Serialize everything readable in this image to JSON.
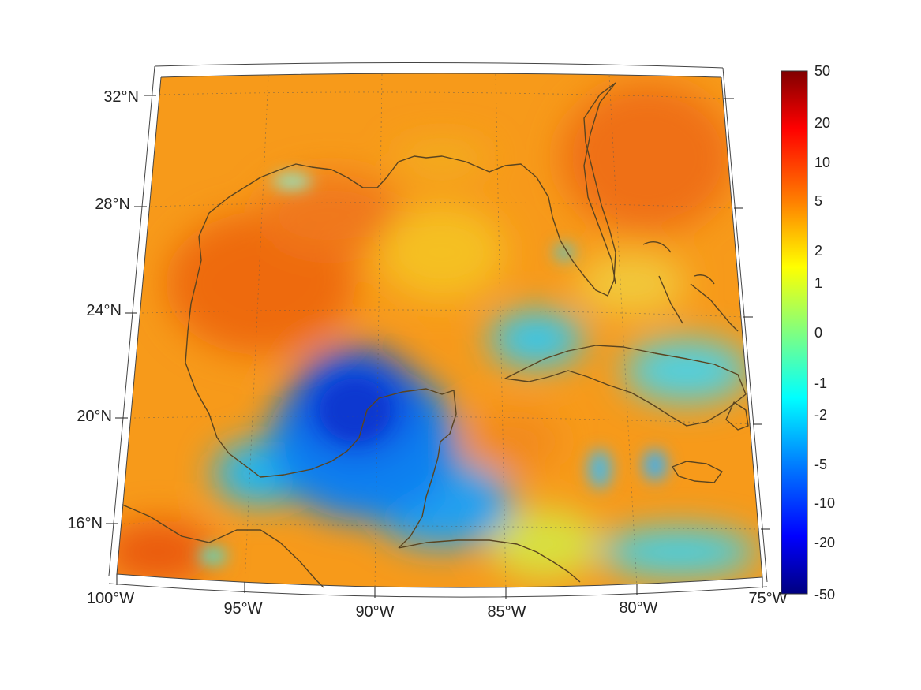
{
  "map": {
    "lat_labels": [
      "32°N",
      "28°N",
      "24°N",
      "20°N",
      "16°N"
    ],
    "lon_labels": [
      "100°W",
      "95°W",
      "90°W",
      "85°W",
      "80°W",
      "75°W"
    ],
    "region": "Gulf of Mexico and Caribbean"
  },
  "colorbar": {
    "colormap": "jet",
    "labels": [
      "50",
      "20",
      "10",
      "5",
      "2",
      "1",
      "0",
      "-1",
      "-2",
      "-5",
      "-10",
      "-20",
      "-50"
    ],
    "min": -50,
    "max": 50
  },
  "colors": {
    "dominant_field": "#f79a1a",
    "low_extreme": "#000088",
    "high_extreme": "#880000",
    "coastline": "#5a4420"
  }
}
